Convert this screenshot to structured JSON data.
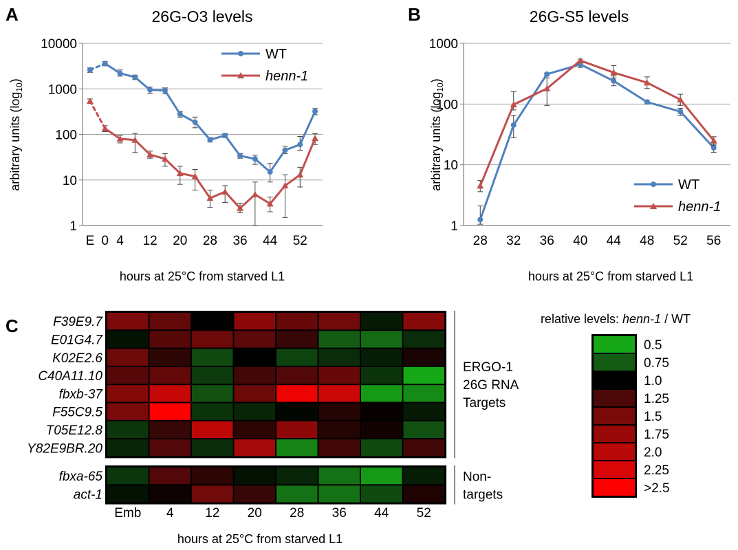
{
  "panels": {
    "a": {
      "letter": "A"
    },
    "b": {
      "letter": "B"
    },
    "c": {
      "letter": "C"
    }
  },
  "colors": {
    "wt": "#4F81BD",
    "henn": "#C0504D",
    "grid": "#A6A6A6",
    "axis": "#7F7F7F",
    "errorbar": "#404040"
  },
  "chart_data": [
    {
      "id": "A",
      "type": "line",
      "title": "26G-O3 levels",
      "ylabel": "arbitrary units (log10)",
      "xlabel": "hours at 25°C from starved L1",
      "yscale": "log",
      "ylim": [
        1,
        10000
      ],
      "yticks": [
        "1",
        "10",
        "100",
        "1000",
        "10000"
      ],
      "xticks": [
        "E",
        "0",
        "4",
        "12",
        "20",
        "28",
        "36",
        "44",
        "52"
      ],
      "xticks_at": [
        -4,
        0,
        4,
        12,
        20,
        28,
        36,
        44,
        52
      ],
      "x": [
        -4,
        0,
        4,
        8,
        12,
        16,
        20,
        24,
        28,
        32,
        36,
        40,
        44,
        48,
        52,
        56
      ],
      "xlim": [
        -6,
        58
      ],
      "dashed_segment_between": [
        -4,
        0
      ],
      "legend_position": "top-right",
      "series": [
        {
          "name": "WT",
          "values": [
            2600,
            3600,
            2200,
            1800,
            950,
            920,
            280,
            185,
            76,
            95,
            34,
            29,
            15,
            45,
            60,
            320
          ],
          "err": [
            [
              2300,
              2900
            ],
            [
              3200,
              4000
            ],
            [
              1900,
              2600
            ],
            [
              1600,
              2000
            ],
            [
              800,
              1100
            ],
            [
              780,
              1050
            ],
            [
              240,
              320
            ],
            [
              140,
              240
            ],
            [
              68,
              85
            ],
            [
              85,
              105
            ],
            [
              30,
              38
            ],
            [
              22,
              35
            ],
            [
              9,
              23
            ],
            [
              38,
              55
            ],
            [
              45,
              90
            ],
            [
              270,
              370
            ]
          ]
        },
        {
          "name": "henn-1",
          "values": [
            540,
            135,
            80,
            75,
            36,
            29,
            14,
            12,
            4,
            5.5,
            2.4,
            4.8,
            3,
            7.5,
            13,
            82
          ],
          "err": [
            [
              490,
              600
            ],
            [
              115,
              155
            ],
            [
              65,
              95
            ],
            [
              40,
              105
            ],
            [
              30,
              43
            ],
            [
              20,
              38
            ],
            [
              8,
              20
            ],
            [
              6,
              17
            ],
            [
              2.5,
              6
            ],
            [
              3.2,
              7.5
            ],
            [
              1.9,
              3.1
            ],
            [
              1,
              9
            ],
            [
              2,
              4.2
            ],
            [
              1.5,
              13
            ],
            [
              7,
              19
            ],
            [
              60,
              104
            ]
          ]
        }
      ]
    },
    {
      "id": "B",
      "type": "line",
      "title": "26G-S5 levels",
      "ylabel": "arbitrary units (log10)",
      "xlabel": "hours at 25°C from starved L1",
      "yscale": "log",
      "ylim": [
        1,
        1000
      ],
      "yticks": [
        "1",
        "10",
        "100",
        "1000"
      ],
      "x": [
        28,
        32,
        36,
        40,
        44,
        48,
        52,
        56
      ],
      "xticks": [
        "28",
        "32",
        "36",
        "40",
        "44",
        "48",
        "52",
        "56"
      ],
      "xlim": [
        26,
        58
      ],
      "legend_position": "bottom-right",
      "series": [
        {
          "name": "WT",
          "values": [
            1.25,
            45,
            310,
            450,
            240,
            108,
            75,
            19
          ],
          "err": [
            [
              1.05,
              2.1
            ],
            [
              28,
              65
            ],
            [
              300,
              325
            ],
            [
              400,
              500
            ],
            [
              200,
              290
            ],
            [
              100,
              116
            ],
            [
              65,
              85
            ],
            [
              16,
              22
            ]
          ]
        },
        {
          "name": "henn-1",
          "values": [
            4.5,
            98,
            180,
            520,
            330,
            225,
            118,
            25
          ],
          "err": [
            [
              3.6,
              5.5
            ],
            [
              80,
              160
            ],
            [
              95,
              270
            ],
            [
              490,
              550
            ],
            [
              270,
              430
            ],
            [
              180,
              280
            ],
            [
              95,
              145
            ],
            [
              21,
              29
            ]
          ]
        }
      ]
    },
    {
      "id": "C",
      "type": "heatmap",
      "xlabel": "hours at 25°C from starved L1",
      "columns": [
        "Emb",
        "4",
        "12",
        "20",
        "28",
        "36",
        "44",
        "52"
      ],
      "row_groups": [
        {
          "label_lines": [
            "ERGO-1",
            "26G RNA",
            "Targets"
          ],
          "rows": [
            {
              "label": "F39E9.7",
              "values": [
                1.52,
                1.38,
                1.0,
                1.65,
                1.4,
                1.45,
                0.93,
                1.6
              ]
            },
            {
              "label": "E01G4.7",
              "values": [
                0.95,
                1.3,
                1.42,
                1.33,
                1.18,
                0.75,
                0.7,
                0.88
              ]
            },
            {
              "label": "K02E2.6",
              "values": [
                1.42,
                1.15,
                0.8,
                1.0,
                0.82,
                0.88,
                0.92,
                1.08
              ]
            },
            {
              "label": "C40A11.10",
              "values": [
                1.3,
                1.38,
                0.84,
                1.22,
                1.28,
                1.4,
                0.86,
                0.4
              ]
            },
            {
              "label": "fbxb-37",
              "values": [
                1.58,
                2.1,
                0.78,
                1.42,
                2.4,
                2.15,
                0.55,
                0.6
              ]
            },
            {
              "label": "F55C9.5",
              "values": [
                1.5,
                2.6,
                0.86,
                0.9,
                0.98,
                1.12,
                1.03,
                0.93
              ]
            },
            {
              "label": "T05E12.8",
              "values": [
                0.85,
                1.18,
                2.05,
                1.15,
                1.65,
                1.12,
                1.06,
                0.78
              ]
            },
            {
              "label": "Y82E9BR.20",
              "values": [
                0.9,
                1.28,
                0.88,
                1.85,
                0.62,
                1.22,
                0.8,
                1.22
              ]
            }
          ]
        },
        {
          "label_lines": [
            "Non-",
            "targets"
          ],
          "rows": [
            {
              "label": "fbxa-65",
              "values": [
                0.85,
                1.28,
                1.15,
                0.95,
                0.9,
                0.68,
                0.55,
                0.92
              ]
            },
            {
              "label": "act-1",
              "values": [
                0.95,
                1.05,
                1.45,
                1.18,
                0.68,
                0.68,
                0.8,
                1.1
              ]
            }
          ]
        }
      ],
      "legend": {
        "title_prefix": "relative levels: ",
        "title_italic": "henn-1",
        "title_suffix": " / WT",
        "levels": [
          {
            "label": "0.5",
            "color": "#17a817"
          },
          {
            "label": "0.75",
            "color": "#145c14"
          },
          {
            "label": "1.0",
            "color": "#000000"
          },
          {
            "label": "1.25",
            "color": "#4d0808"
          },
          {
            "label": "1.5",
            "color": "#7a0a0a"
          },
          {
            "label": "1.75",
            "color": "#990909"
          },
          {
            "label": "2.0",
            "color": "#b80808"
          },
          {
            "label": "2.25",
            "color": "#d80606"
          },
          {
            "label": ">2.5",
            "color": "#ff0000"
          }
        ]
      }
    }
  ]
}
